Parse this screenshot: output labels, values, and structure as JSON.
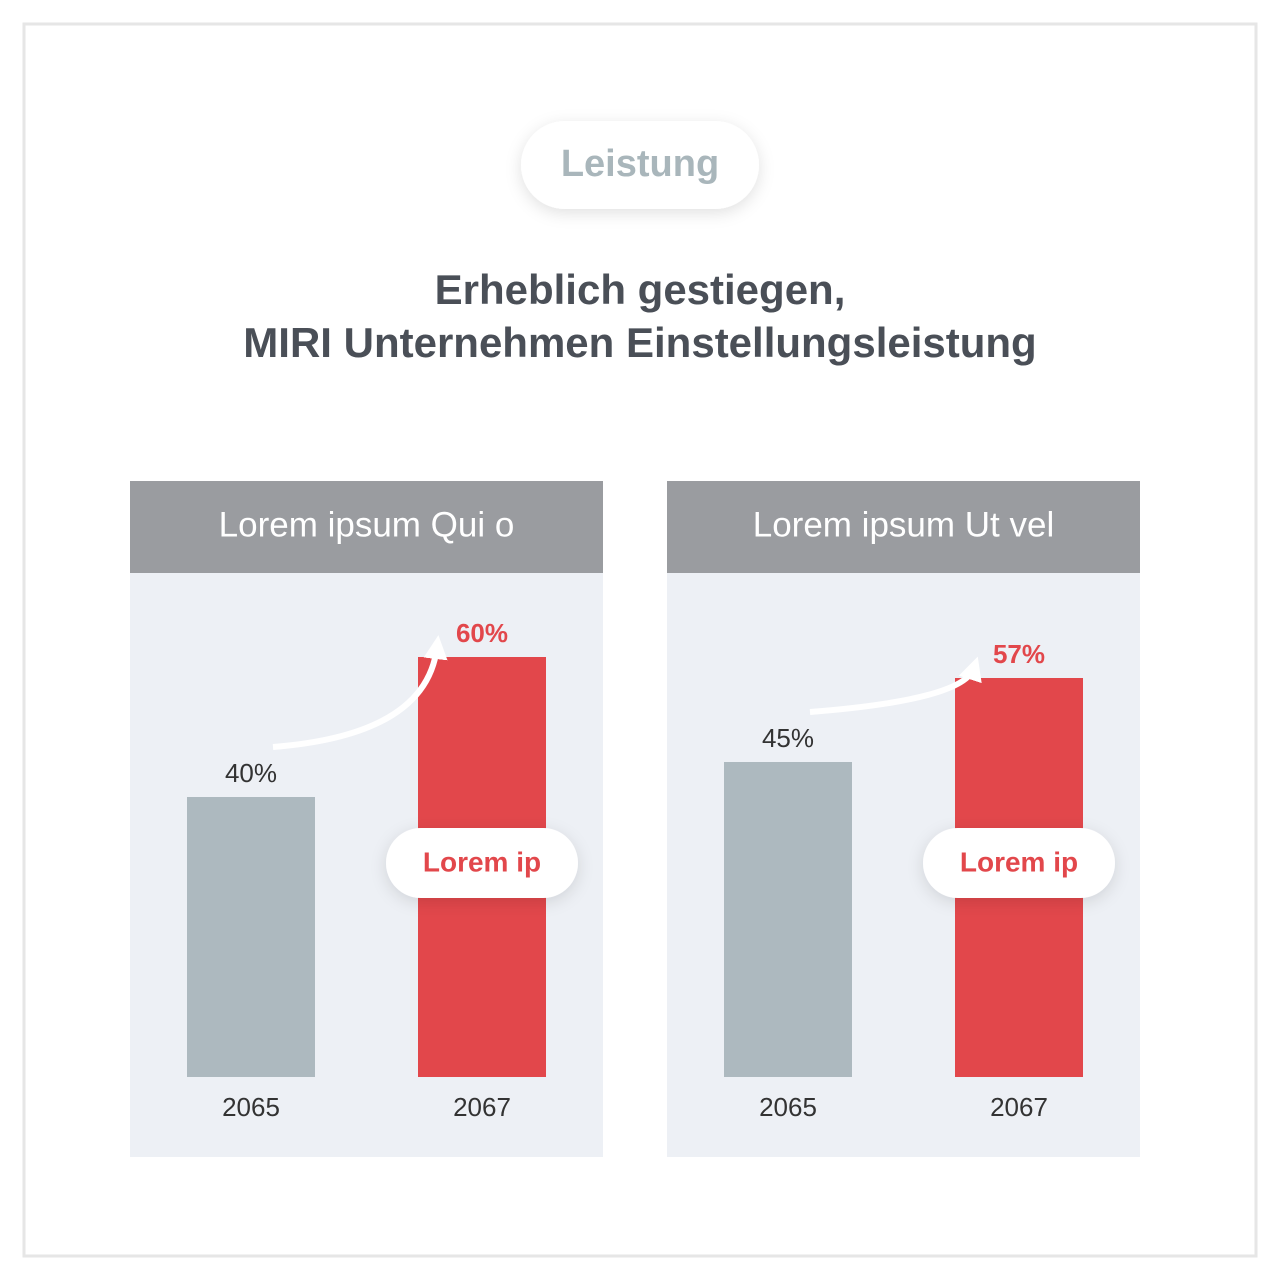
{
  "header": {
    "badge": "Leistung",
    "title": [
      "Erheblich gestiegen,",
      "MIRI Unternehmen Einstellungsleistung"
    ]
  },
  "chart_data": [
    {
      "type": "bar",
      "title": "Lorem ipsum Qui o",
      "categories": [
        "2065",
        "2067"
      ],
      "values": [
        40,
        60
      ],
      "value_labels": [
        "40%",
        "60%"
      ],
      "colors": [
        "#adb9bf",
        "#e2474b"
      ],
      "annotation": "Lorem ip"
    },
    {
      "type": "bar",
      "title": "Lorem ipsum Ut vel",
      "categories": [
        "2065",
        "2067"
      ],
      "values": [
        45,
        57
      ],
      "value_labels": [
        "45%",
        "57%"
      ],
      "colors": [
        "#adb9bf",
        "#e2474b"
      ],
      "annotation": "Lorem ip"
    }
  ]
}
